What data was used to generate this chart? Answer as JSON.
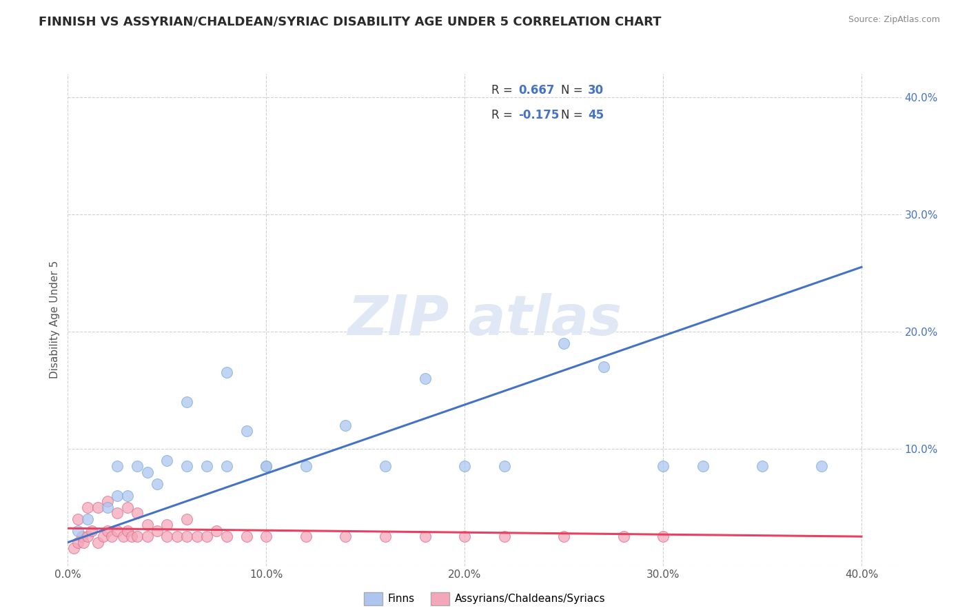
{
  "title": "FINNISH VS ASSYRIAN/CHALDEAN/SYRIAC DISABILITY AGE UNDER 5 CORRELATION CHART",
  "source": "Source: ZipAtlas.com",
  "ylabel": "Disability Age Under 5",
  "xlim": [
    0.0,
    0.42
  ],
  "ylim": [
    0.0,
    0.42
  ],
  "xtick_vals": [
    0.0,
    0.1,
    0.2,
    0.3,
    0.4
  ],
  "ytick_vals": [
    0.0,
    0.1,
    0.2,
    0.3,
    0.4
  ],
  "finn_R": "0.667",
  "finn_N": "30",
  "ass_R": "-0.175",
  "ass_N": "45",
  "finns_x": [
    0.005,
    0.01,
    0.02,
    0.025,
    0.03,
    0.04,
    0.045,
    0.05,
    0.06,
    0.07,
    0.08,
    0.09,
    0.1,
    0.12,
    0.14,
    0.16,
    0.18,
    0.2,
    0.22,
    0.25,
    0.27,
    0.3,
    0.32,
    0.35,
    0.025,
    0.035,
    0.06,
    0.08,
    0.1,
    0.38
  ],
  "finns_y": [
    0.03,
    0.04,
    0.05,
    0.06,
    0.06,
    0.08,
    0.07,
    0.09,
    0.085,
    0.085,
    0.085,
    0.115,
    0.085,
    0.085,
    0.12,
    0.085,
    0.16,
    0.085,
    0.085,
    0.19,
    0.17,
    0.085,
    0.085,
    0.085,
    0.085,
    0.085,
    0.14,
    0.165,
    0.085,
    0.085
  ],
  "assyrians_x": [
    0.003,
    0.005,
    0.007,
    0.008,
    0.01,
    0.012,
    0.015,
    0.018,
    0.02,
    0.022,
    0.025,
    0.028,
    0.03,
    0.032,
    0.035,
    0.04,
    0.045,
    0.05,
    0.055,
    0.06,
    0.065,
    0.07,
    0.075,
    0.08,
    0.09,
    0.1,
    0.12,
    0.14,
    0.16,
    0.18,
    0.2,
    0.22,
    0.25,
    0.28,
    0.3,
    0.005,
    0.01,
    0.015,
    0.02,
    0.025,
    0.03,
    0.035,
    0.04,
    0.05,
    0.06
  ],
  "assyrians_y": [
    0.015,
    0.02,
    0.025,
    0.02,
    0.025,
    0.03,
    0.02,
    0.025,
    0.03,
    0.025,
    0.03,
    0.025,
    0.03,
    0.025,
    0.025,
    0.025,
    0.03,
    0.025,
    0.025,
    0.025,
    0.025,
    0.025,
    0.03,
    0.025,
    0.025,
    0.025,
    0.025,
    0.025,
    0.025,
    0.025,
    0.025,
    0.025,
    0.025,
    0.025,
    0.025,
    0.04,
    0.05,
    0.05,
    0.055,
    0.045,
    0.05,
    0.045,
    0.035,
    0.035,
    0.04
  ],
  "finn_line_x": [
    0.0,
    0.4
  ],
  "finn_line_y": [
    0.02,
    0.255
  ],
  "ass_line_x": [
    0.0,
    0.4
  ],
  "ass_line_y": [
    0.032,
    0.025
  ],
  "background_color": "#ffffff",
  "grid_color": "#cccccc",
  "finn_scatter_color": "#aec6ef",
  "finn_scatter_edge": "#7badd4",
  "finn_line_color": "#4472c4",
  "ass_scatter_color": "#f4a7b9",
  "ass_scatter_edge": "#e07090",
  "ass_line_color": "#e84060",
  "watermark_color": "#e0e8f5",
  "title_fontsize": 13,
  "label_fontsize": 11,
  "tick_fontsize": 11,
  "legend_fontsize": 12
}
